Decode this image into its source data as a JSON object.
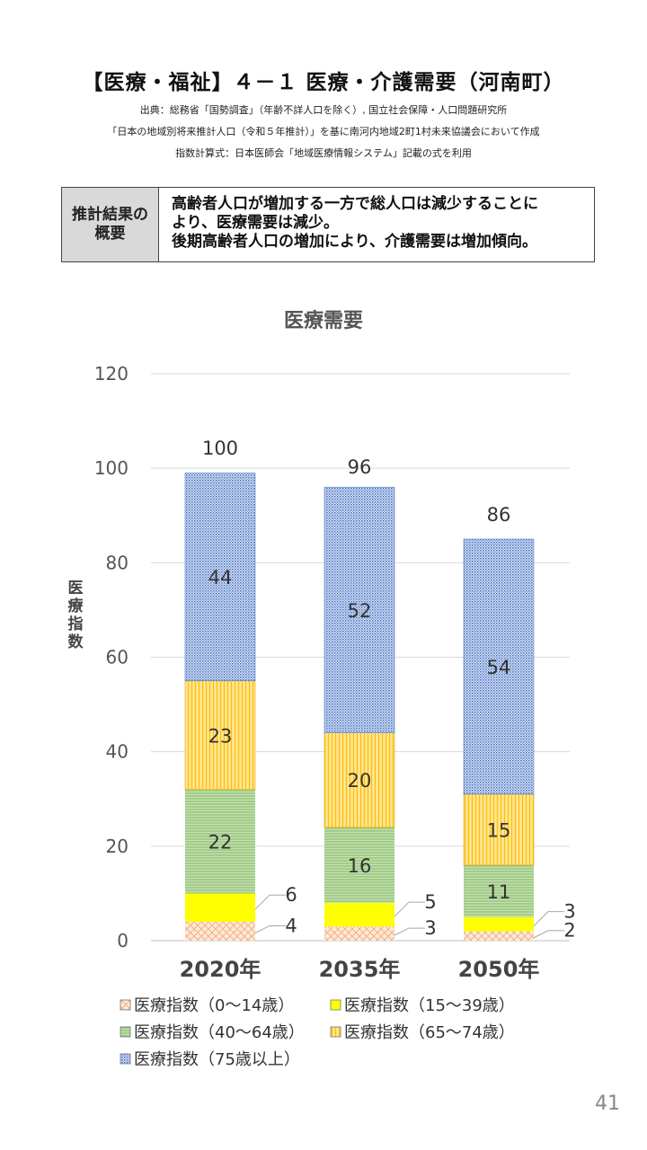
{
  "header": {
    "title": "【医療・福祉】４－１ 医療・介護需要（河南町）",
    "source_lines": [
      "出典：総務省「国勢調査」（年齢不詳人口を除く）, 国立社会保障・人口問題研究所",
      "「日本の地域別将来推計人口（令和５年推計）」を基に南河内地域2町1村未来協議会において作成",
      "指数計算式：日本医師会「地域医療情報システム」記載の式を利用"
    ]
  },
  "summary": {
    "heading": "推計結果の概要",
    "lines": [
      "高齢者人口が増加する一方で総人口は減少することに",
      "より、医療需要は減少。",
      "後期高齢者人口の増加により、介護需要は増加傾向。"
    ]
  },
  "chart_data": {
    "type": "bar",
    "stacked": true,
    "title": "医療需要",
    "ylabel": "医療指数",
    "ylim": [
      0,
      120
    ],
    "yticks": [
      0,
      20,
      40,
      60,
      80,
      100,
      120
    ],
    "grid": true,
    "legend_position": "bottom",
    "categories": [
      "2020年",
      "2035年",
      "2050年"
    ],
    "totals": [
      100,
      96,
      86
    ],
    "series": [
      {
        "name": "医療指数（0～14歳）",
        "values": [
          4,
          3,
          2
        ],
        "color": "#f4b183",
        "pattern": "cross"
      },
      {
        "name": "医療指数（15～39歳）",
        "values": [
          6,
          5,
          3
        ],
        "color": "#ffff00",
        "pattern": "solid"
      },
      {
        "name": "医療指数（40～64歳）",
        "values": [
          22,
          16,
          11
        ],
        "color": "#a9d18e",
        "pattern": "hlines"
      },
      {
        "name": "医療指数（65～74歳）",
        "values": [
          23,
          20,
          15
        ],
        "color": "#ffc000",
        "pattern": "vlines"
      },
      {
        "name": "医療指数（75歳以上）",
        "values": [
          44,
          52,
          54
        ],
        "color": "#8faadc",
        "pattern": "dots"
      }
    ]
  },
  "page_number": "41"
}
